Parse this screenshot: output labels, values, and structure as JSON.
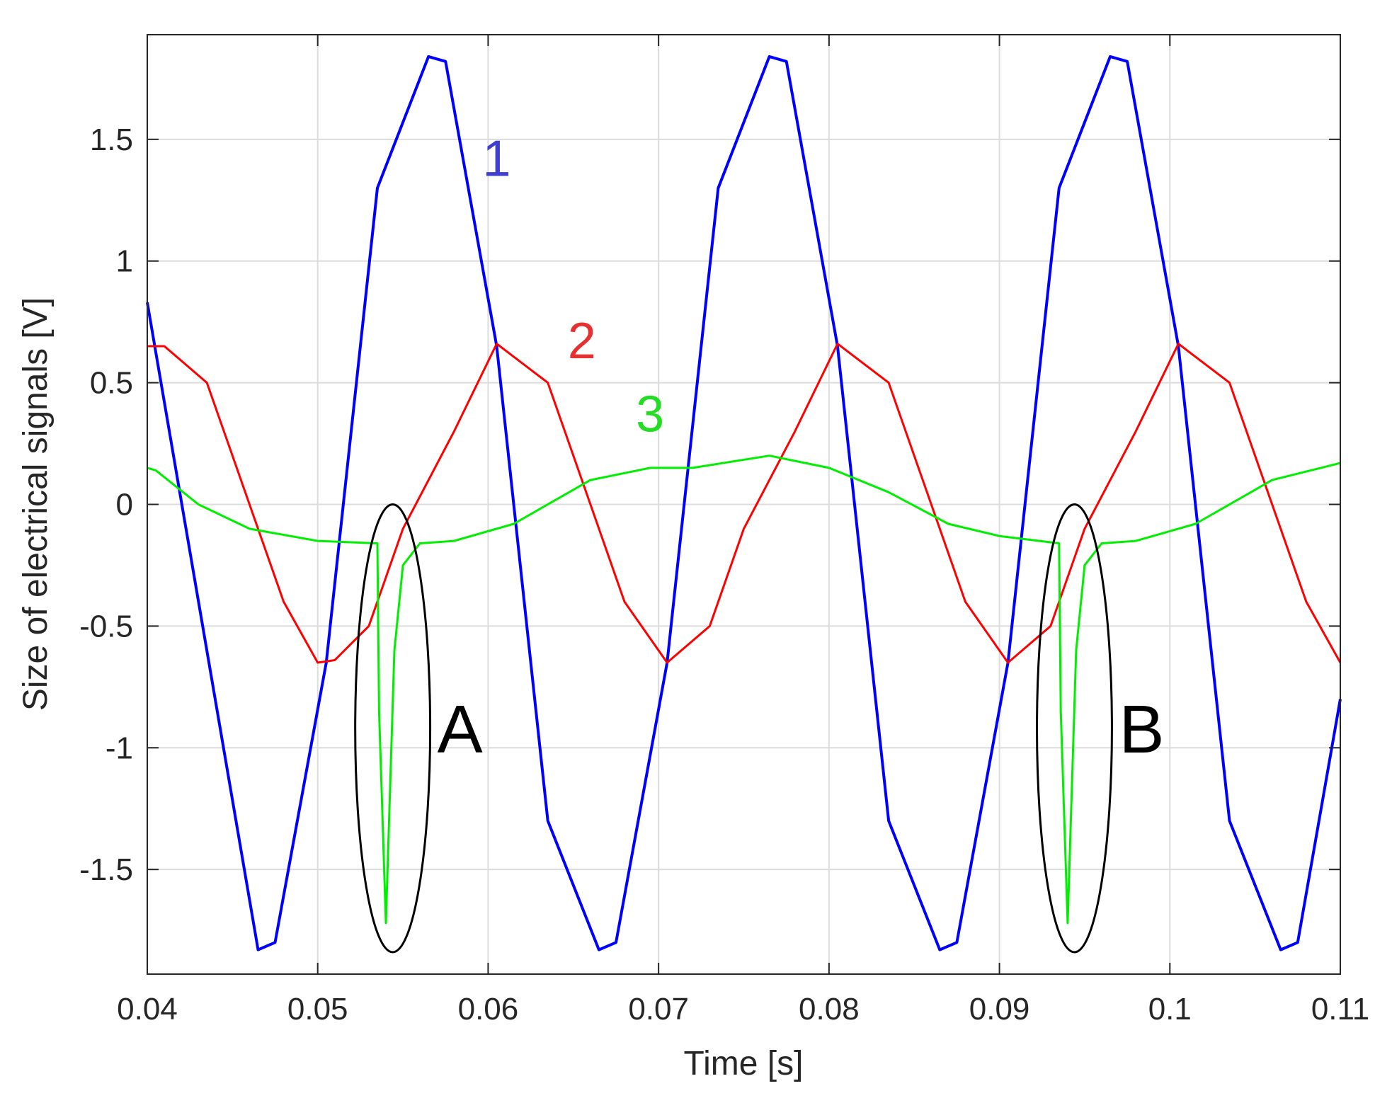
{
  "chart_data": {
    "type": "line",
    "title": "",
    "xlabel": "Time [s]",
    "ylabel": "Size of electrical signals [V]",
    "xlim": [
      0.04,
      0.11
    ],
    "ylim": [
      -1.93,
      1.93
    ],
    "x_ticks": [
      0.04,
      0.05,
      0.06,
      0.07,
      0.08,
      0.09,
      0.1,
      0.11
    ],
    "x_tick_labels": [
      "0.04",
      "0.05",
      "0.06",
      "0.07",
      "0.08",
      "0.09",
      "0.1",
      "0.11"
    ],
    "y_ticks": [
      -1.5,
      -1,
      -0.5,
      0,
      0.5,
      1,
      1.5
    ],
    "y_tick_labels": [
      "-1.5",
      "-1",
      "-0.5",
      "0",
      "0.5",
      "1",
      "1.5"
    ],
    "grid": true,
    "series": [
      {
        "name": "1",
        "color": "#0000ff",
        "description_values": "periodic signal, period 0.02 s",
        "x": [
          0.04,
          0.0465,
          0.0475,
          0.0505,
          0.0535,
          0.0565,
          0.0575,
          0.0605,
          0.0635,
          0.0665,
          0.0675,
          0.0705,
          0.0735,
          0.0765,
          0.0775,
          0.0805,
          0.0835,
          0.0865,
          0.0875,
          0.0905,
          0.0935,
          0.0965,
          0.0975,
          0.1005,
          0.1035,
          0.1065,
          0.1075,
          0.11
        ],
        "y": [
          0.83,
          -1.83,
          -1.8,
          -0.65,
          1.3,
          1.84,
          1.82,
          0.65,
          -1.3,
          -1.83,
          -1.8,
          -0.65,
          1.3,
          1.84,
          1.82,
          0.65,
          -1.3,
          -1.83,
          -1.8,
          -0.65,
          1.3,
          1.84,
          1.82,
          0.65,
          -1.3,
          -1.83,
          -1.8,
          -0.8
        ]
      },
      {
        "name": "2",
        "color": "#ff0000",
        "x": [
          0.04,
          0.041,
          0.0435,
          0.046,
          0.048,
          0.05,
          0.051,
          0.053,
          0.055,
          0.058,
          0.0605,
          0.0635,
          0.066,
          0.068,
          0.0705,
          0.073,
          0.075,
          0.078,
          0.0805,
          0.0835,
          0.086,
          0.088,
          0.0905,
          0.093,
          0.095,
          0.098,
          0.1005,
          0.1035,
          0.106,
          0.108,
          0.11
        ],
        "y": [
          0.65,
          0.65,
          0.5,
          0.0,
          -0.4,
          -0.65,
          -0.64,
          -0.5,
          -0.1,
          0.3,
          0.66,
          0.5,
          0.0,
          -0.4,
          -0.65,
          -0.5,
          -0.1,
          0.3,
          0.66,
          0.5,
          0.0,
          -0.4,
          -0.65,
          -0.5,
          -0.1,
          0.3,
          0.66,
          0.5,
          0.0,
          -0.4,
          -0.65
        ]
      },
      {
        "name": "3",
        "color": "#00ee00",
        "x": [
          0.04,
          0.0405,
          0.043,
          0.046,
          0.05,
          0.0535,
          0.0536,
          0.054,
          0.0545,
          0.055,
          0.056,
          0.058,
          0.0615,
          0.066,
          0.0695,
          0.072,
          0.0765,
          0.08,
          0.0835,
          0.087,
          0.09,
          0.0935,
          0.0936,
          0.094,
          0.0945,
          0.095,
          0.096,
          0.098,
          0.1015,
          0.106,
          0.11
        ],
        "y": [
          0.15,
          0.14,
          0.0,
          -0.1,
          -0.15,
          -0.16,
          -0.85,
          -1.72,
          -0.6,
          -0.25,
          -0.16,
          -0.15,
          -0.08,
          0.1,
          0.15,
          0.15,
          0.2,
          0.15,
          0.05,
          -0.08,
          -0.13,
          -0.16,
          -0.85,
          -1.72,
          -0.6,
          -0.25,
          -0.16,
          -0.15,
          -0.08,
          0.1,
          0.17
        ]
      }
    ],
    "curve_labels": [
      {
        "text": "1",
        "color": "#4040d0",
        "x": 0.0605,
        "y": 1.35
      },
      {
        "text": "2",
        "color": "#e83030",
        "x": 0.0655,
        "y": 0.6
      },
      {
        "text": "3",
        "color": "#22dd22",
        "x": 0.0695,
        "y": 0.3
      }
    ],
    "regions": [
      {
        "label": "A",
        "cx": 0.0544,
        "cy": -0.92,
        "rx": 0.0022,
        "ry": 0.92
      },
      {
        "label": "B",
        "cx": 0.0944,
        "cy": -0.92,
        "rx": 0.0022,
        "ry": 0.92
      }
    ]
  }
}
